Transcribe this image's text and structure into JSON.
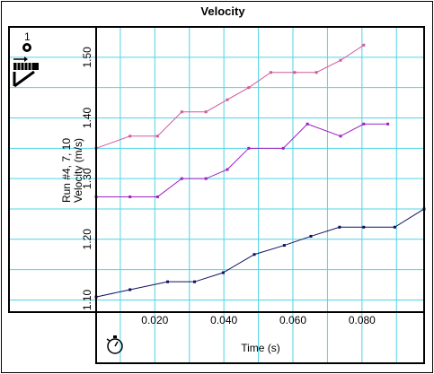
{
  "chart_data": {
    "type": "line",
    "title": "Velocity",
    "xlabel": "Time (s)",
    "ylabel_lines": [
      "Run #4, 7, 10",
      "Velocity (m/s)"
    ],
    "xlim": [
      0.003,
      0.098
    ],
    "ylim": [
      1.08,
      1.55
    ],
    "x_ticks": [
      {
        "value": 0.02,
        "label": "0.020"
      },
      {
        "value": 0.04,
        "label": "0.040"
      },
      {
        "value": 0.06,
        "label": "0.060"
      },
      {
        "value": 0.08,
        "label": "0.080"
      }
    ],
    "y_ticks": [
      {
        "value": 1.1,
        "label": "1.10"
      },
      {
        "value": 1.2,
        "label": "1.20"
      },
      {
        "value": 1.3,
        "label": "1.30"
      },
      {
        "value": 1.4,
        "label": "1.40"
      },
      {
        "value": 1.5,
        "label": "1.50"
      }
    ],
    "x_grid": [
      0.01,
      0.02,
      0.03,
      0.04,
      0.05,
      0.06,
      0.07,
      0.08,
      0.09
    ],
    "y_grid": [
      1.1,
      1.15,
      1.2,
      1.25,
      1.3,
      1.35,
      1.4,
      1.45,
      1.5
    ],
    "grid": true,
    "legend": "none",
    "series": [
      {
        "color": "#d4589c",
        "x": [
          0.003,
          0.0128,
          0.0208,
          0.0278,
          0.0348,
          0.041,
          0.0472,
          0.0536,
          0.0605,
          0.0668,
          0.0738,
          0.0805
        ],
        "y": [
          1.35,
          1.37,
          1.37,
          1.41,
          1.41,
          1.43,
          1.45,
          1.475,
          1.475,
          1.475,
          1.495,
          1.52
        ]
      },
      {
        "color": "#a020c0",
        "x": [
          0.003,
          0.0128,
          0.0208,
          0.0278,
          0.0348,
          0.041,
          0.0472,
          0.0572,
          0.0642,
          0.0738,
          0.0805,
          0.0875
        ],
        "y": [
          1.27,
          1.27,
          1.27,
          1.3,
          1.3,
          1.315,
          1.35,
          1.35,
          1.39,
          1.37,
          1.39,
          1.39
        ]
      },
      {
        "color": "#101060",
        "x": [
          0.003,
          0.0128,
          0.0237,
          0.0315,
          0.0398,
          0.0488,
          0.0575,
          0.0652,
          0.0735,
          0.0805,
          0.0895,
          0.098
        ],
        "y": [
          1.105,
          1.117,
          1.13,
          1.13,
          1.145,
          1.175,
          1.19,
          1.205,
          1.22,
          1.22,
          1.22,
          1.25
        ]
      }
    ]
  },
  "icons": {
    "sensor_number": "1",
    "sensor": "motion-sensor-icon",
    "timer": "stopwatch-icon"
  }
}
